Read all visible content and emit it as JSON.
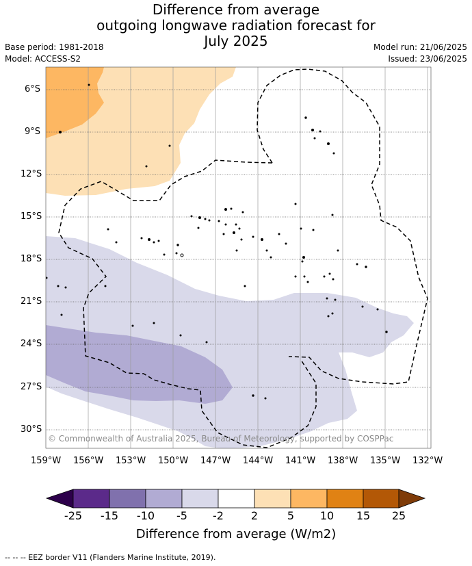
{
  "title": {
    "line1": "Difference from average",
    "line2": "outgoing longwave radiation forecast for",
    "line3": "July 2025"
  },
  "meta": {
    "base_period": "Base period: 1981-2018",
    "model": "Model: ACCESS-S2",
    "model_run": "Model run: 21/06/2025",
    "issued": "Issued: 23/06/2025"
  },
  "lat_labels": [
    "6°S",
    "9°S",
    "12°S",
    "15°S",
    "18°S",
    "21°S",
    "24°S",
    "27°S",
    "30°S"
  ],
  "lon_labels": [
    "159°W",
    "156°W",
    "153°W",
    "150°W",
    "147°W",
    "144°W",
    "141°W",
    "138°W",
    "135°W",
    "132°W"
  ],
  "copyright": "© Commonwealth of Australia 2025, Bureau of Meteorology, supported by COSPPac",
  "colorbar": {
    "title": "Difference from average (W/m2)",
    "ticks": [
      "-25",
      "-15",
      "-10",
      "-5",
      "-2",
      "2",
      "5",
      "10",
      "15",
      "25"
    ],
    "colors": [
      "#5b2a8a",
      "#8071ad",
      "#b1abd3",
      "#d9d9ea",
      "#ffffff",
      "#fde0b5",
      "#fdb762",
      "#e08214",
      "#b35806"
    ],
    "under_color": "#2d004b",
    "over_color": "#7f3b08"
  },
  "footer": "--  --  -- EEZ border V11 (Flanders Marine Institute, 2019)."
}
